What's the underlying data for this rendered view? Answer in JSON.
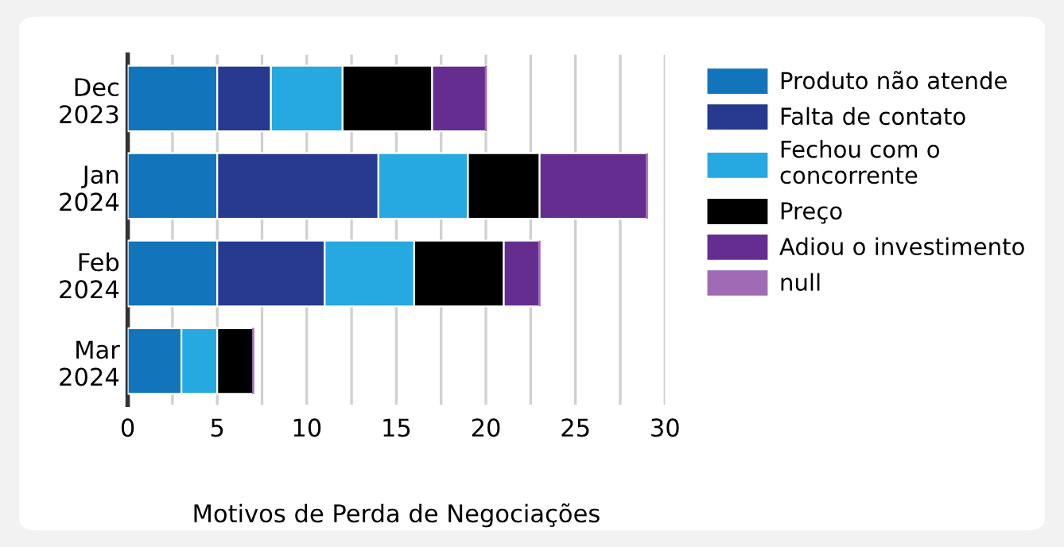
{
  "chart_data": {
    "type": "bar",
    "orientation": "horizontal",
    "stacked": true,
    "xlabel": "Motivos de Perda de Negociações",
    "categories": [
      "Dec\n2023",
      "Jan\n2024",
      "Feb\n2024",
      "Mar\n2024"
    ],
    "series": [
      {
        "name": "Produto não atende",
        "color": "#1275bb",
        "values": [
          5,
          5,
          5,
          3
        ]
      },
      {
        "name": "Falta de contato",
        "color": "#283a8f",
        "values": [
          3,
          9,
          6,
          0
        ]
      },
      {
        "name": "Fechou com o\nconcorrente",
        "color": "#25a9e0",
        "values": [
          4,
          5,
          5,
          2
        ]
      },
      {
        "name": "Preço",
        "color": "#000000",
        "values": [
          5,
          4,
          5,
          2
        ]
      },
      {
        "name": "Adiou o investimento",
        "color": "#662d91",
        "values": [
          3,
          6,
          2,
          0
        ]
      },
      {
        "name": "null",
        "color": "#a06ab4",
        "values": [
          0,
          0,
          0,
          0
        ]
      }
    ],
    "xlim": [
      0,
      30
    ],
    "xticks": [
      0,
      {
        "value": 2.5,
        "label": null
      },
      5,
      {
        "value": 7.5,
        "label": null
      },
      10,
      {
        "value": 12.5,
        "label": null
      },
      15,
      {
        "value": 17.5,
        "label": null
      },
      20,
      {
        "value": 22.5,
        "label": null
      },
      25,
      {
        "value": 27.5,
        "label": null
      },
      30
    ],
    "grid": "x",
    "legend": "top right"
  }
}
